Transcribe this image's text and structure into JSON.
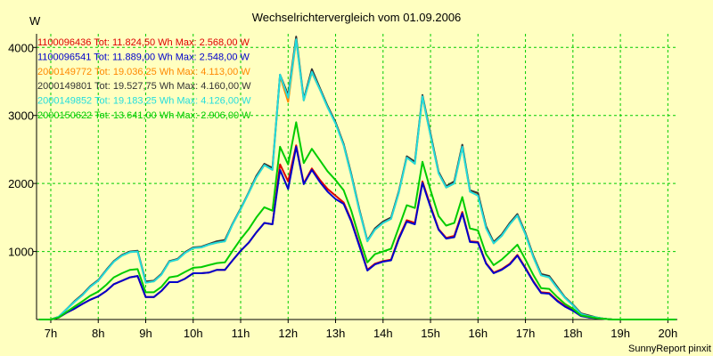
{
  "chart_data": {
    "type": "line",
    "title": "Wechselrichtervergleich vom 01.09.2006",
    "ylabel": "W",
    "xlabel": "",
    "footer": "SunnyReport pinxit",
    "xlim": [
      6.7,
      20.2
    ],
    "ylim": [
      0,
      4200
    ],
    "grid": true,
    "legend_position": "top-left",
    "x_ticks": [
      7,
      8,
      9,
      10,
      11,
      12,
      13,
      14,
      15,
      16,
      17,
      18,
      19,
      20
    ],
    "x_tick_labels": [
      "7h",
      "8h",
      "9h",
      "10h",
      "11h",
      "12h",
      "13h",
      "14h",
      "15h",
      "16h",
      "17h",
      "18h",
      "19h",
      "20h"
    ],
    "y_ticks": [
      1000,
      2000,
      3000,
      4000
    ],
    "y_tick_labels": [
      "1000",
      "2000",
      "3000",
      "4000"
    ],
    "x": [
      6.75,
      7.0,
      7.17,
      7.33,
      7.5,
      7.67,
      7.83,
      8.0,
      8.17,
      8.33,
      8.5,
      8.67,
      8.83,
      9.0,
      9.17,
      9.33,
      9.5,
      9.67,
      9.83,
      10.0,
      10.17,
      10.33,
      10.5,
      10.67,
      10.83,
      11.0,
      11.17,
      11.33,
      11.5,
      11.67,
      11.83,
      12.0,
      12.17,
      12.33,
      12.5,
      12.67,
      12.83,
      13.0,
      13.17,
      13.33,
      13.5,
      13.67,
      13.83,
      14.0,
      14.17,
      14.33,
      14.5,
      14.67,
      14.83,
      15.0,
      15.17,
      15.33,
      15.5,
      15.67,
      15.83,
      16.0,
      16.17,
      16.33,
      16.5,
      16.67,
      16.83,
      17.0,
      17.17,
      17.33,
      17.5,
      17.67,
      17.83,
      18.0,
      18.17,
      18.33,
      18.5,
      18.67,
      18.83,
      19.0,
      19.17,
      19.33,
      19.5,
      19.67,
      19.83,
      20.0,
      20.17
    ],
    "series": [
      {
        "name": "1100096436",
        "label": "1100096436 Tot: 11.824,50 Wh Max: 2.568,00 W",
        "color": "#dd0000",
        "width": 2,
        "values": [
          0,
          0,
          30,
          100,
          160,
          230,
          290,
          340,
          420,
          520,
          570,
          620,
          640,
          330,
          330,
          420,
          550,
          550,
          600,
          680,
          680,
          690,
          730,
          730,
          870,
          1010,
          1130,
          1280,
          1420,
          1400,
          2280,
          2030,
          2560,
          2000,
          2220,
          2050,
          1920,
          1820,
          1720,
          1460,
          1100,
          730,
          820,
          860,
          880,
          1200,
          1460,
          1420,
          2030,
          1670,
          1330,
          1200,
          1230,
          1580,
          1150,
          1140,
          830,
          690,
          740,
          820,
          950,
          760,
          560,
          400,
          390,
          280,
          200,
          140,
          60,
          40,
          20,
          10,
          0,
          0,
          0,
          0,
          0,
          0,
          0,
          0,
          0
        ]
      },
      {
        "name": "1100096541",
        "label": "1100096541 Tot: 11.889,00 Wh Max: 2.548,00 W",
        "color": "#0000cc",
        "width": 2,
        "values": [
          0,
          0,
          30,
          100,
          160,
          230,
          290,
          340,
          420,
          520,
          570,
          620,
          640,
          330,
          330,
          420,
          550,
          550,
          600,
          680,
          680,
          690,
          730,
          730,
          870,
          1010,
          1130,
          1280,
          1420,
          1400,
          2200,
          1920,
          2540,
          1990,
          2200,
          2020,
          1880,
          1770,
          1700,
          1440,
          1080,
          720,
          810,
          850,
          870,
          1180,
          1440,
          1400,
          2010,
          1650,
          1320,
          1190,
          1210,
          1560,
          1140,
          1130,
          820,
          680,
          730,
          810,
          940,
          750,
          550,
          390,
          380,
          270,
          190,
          130,
          50,
          30,
          20,
          10,
          0,
          0,
          0,
          0,
          0,
          0,
          0,
          0,
          0
        ]
      },
      {
        "name": "2000149772",
        "label": "2000149772 Tot: 19.036,25 Wh Max: 4.113,00 W",
        "color": "#ff8800",
        "width": 2,
        "values": [
          0,
          0,
          40,
          150,
          260,
          360,
          480,
          570,
          720,
          850,
          940,
          990,
          1000,
          540,
          560,
          660,
          850,
          880,
          980,
          1050,
          1060,
          1100,
          1130,
          1150,
          1400,
          1620,
          1860,
          2090,
          2270,
          2200,
          3580,
          3200,
          4110,
          3220,
          3630,
          3380,
          3120,
          2890,
          2560,
          2120,
          1600,
          1150,
          1320,
          1420,
          1480,
          1860,
          2380,
          2290,
          3270,
          2700,
          2150,
          1940,
          2000,
          2540,
          1880,
          1830,
          1350,
          1120,
          1230,
          1400,
          1530,
          1250,
          910,
          650,
          620,
          460,
          320,
          210,
          80,
          50,
          30,
          10,
          0,
          0,
          0,
          0,
          0,
          0,
          0,
          0,
          0
        ]
      },
      {
        "name": "2000149801",
        "label": "2000149801 Tot: 19.527,75 Wh Max: 4.160,00 W",
        "color": "#333333",
        "width": 2,
        "values": [
          0,
          0,
          40,
          150,
          270,
          370,
          490,
          580,
          730,
          860,
          950,
          1000,
          1010,
          560,
          570,
          670,
          860,
          890,
          990,
          1060,
          1070,
          1110,
          1150,
          1170,
          1410,
          1630,
          1870,
          2110,
          2290,
          2230,
          3600,
          3300,
          4160,
          3240,
          3680,
          3400,
          3140,
          2900,
          2580,
          2140,
          1620,
          1160,
          1340,
          1440,
          1500,
          1880,
          2400,
          2320,
          3300,
          2730,
          2170,
          1960,
          2030,
          2570,
          1900,
          1860,
          1370,
          1140,
          1250,
          1420,
          1550,
          1270,
          930,
          670,
          640,
          480,
          330,
          220,
          90,
          60,
          30,
          10,
          0,
          0,
          0,
          0,
          0,
          0,
          0,
          0,
          0
        ]
      },
      {
        "name": "2000149852",
        "label": "2000149852 Tot: 19.183,25 Wh Max: 4.126,00 W",
        "color": "#22dddd",
        "width": 2,
        "values": [
          0,
          0,
          40,
          150,
          260,
          360,
          480,
          570,
          720,
          850,
          940,
          990,
          1000,
          540,
          560,
          660,
          850,
          880,
          980,
          1050,
          1060,
          1100,
          1130,
          1150,
          1400,
          1620,
          1860,
          2090,
          2270,
          2200,
          3600,
          3260,
          4120,
          3220,
          3640,
          3380,
          3120,
          2880,
          2560,
          2120,
          1600,
          1150,
          1320,
          1420,
          1480,
          1860,
          2380,
          2290,
          3280,
          2700,
          2150,
          1940,
          2000,
          2540,
          1880,
          1820,
          1340,
          1120,
          1230,
          1400,
          1530,
          1250,
          910,
          650,
          620,
          460,
          320,
          210,
          80,
          50,
          30,
          10,
          0,
          0,
          0,
          0,
          0,
          0,
          0,
          0,
          0
        ]
      },
      {
        "name": "2000150622",
        "label": "2000150622 Tot: 13.641,00 Wh Max: 2.906,00 W",
        "color": "#00cc00",
        "width": 2,
        "values": [
          0,
          0,
          30,
          110,
          190,
          270,
          350,
          410,
          510,
          620,
          680,
          730,
          740,
          400,
          400,
          480,
          620,
          640,
          700,
          760,
          770,
          800,
          830,
          840,
          1010,
          1180,
          1330,
          1500,
          1650,
          1600,
          2540,
          2280,
          2900,
          2300,
          2510,
          2340,
          2180,
          2050,
          1900,
          1600,
          1200,
          840,
          960,
          1000,
          1040,
          1350,
          1680,
          1640,
          2320,
          1900,
          1520,
          1380,
          1420,
          1800,
          1340,
          1310,
          960,
          800,
          880,
          990,
          1100,
          880,
          650,
          460,
          450,
          330,
          230,
          160,
          60,
          40,
          20,
          10,
          0,
          0,
          0,
          0,
          0,
          0,
          0,
          0,
          0
        ]
      }
    ]
  }
}
